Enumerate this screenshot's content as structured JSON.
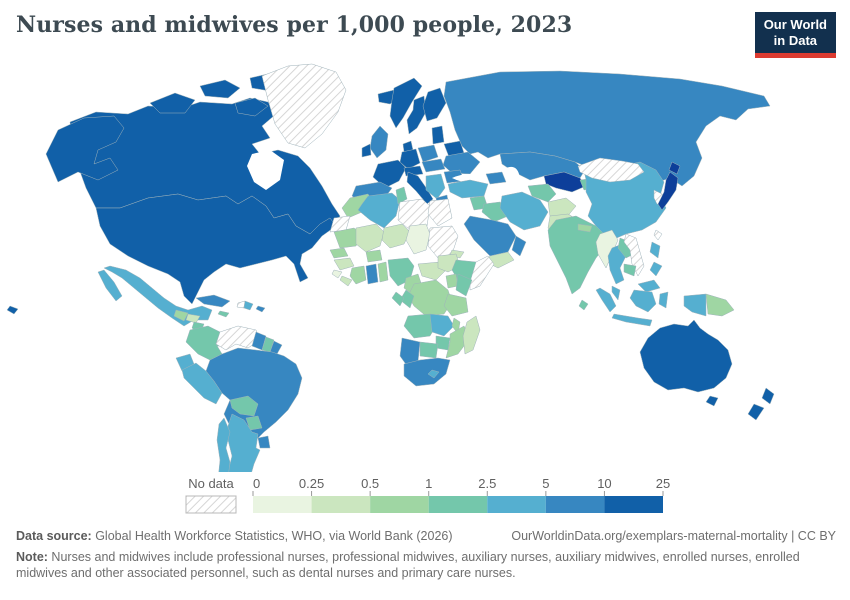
{
  "header": {
    "title": "Nurses and midwives per 1,000 people, 2023",
    "logo_line1": "Our World",
    "logo_line2": "in Data"
  },
  "colors": {
    "logo_navy": "#12304e",
    "logo_red": "#dc3b31",
    "title_color": "#3d4a52",
    "border_color": "#9fb3bb",
    "hatch_line": "#d6d6d6"
  },
  "legend": {
    "no_data_label": "No data",
    "tick_labels": [
      "0",
      "0.25",
      "0.5",
      "1",
      "2.5",
      "5",
      "10",
      "25"
    ]
  },
  "footer": {
    "source_label": "Data source:",
    "source_text": " Global Health Workforce Statistics, WHO, via World Bank (2026)",
    "link_text": "OurWorldinData.org/exemplars-maternal-mortality | CC BY",
    "note_label": "Note:",
    "note_text": " Nurses and midwives include professional nurses, professional midwives, auxiliary nurses, auxiliary midwives, enrolled nurses, enrolled midwives and other associated personnel, such as dental nurses and primary care nurses."
  },
  "chart_data": {
    "type": "choropleth",
    "title": "Nurses and midwives per 1,000 people, 2023",
    "year": "2023",
    "unit_label": "Nurses and midwives per 1,000 people",
    "no_data_label": "No data",
    "bin_edges": [
      0,
      0.25,
      0.5,
      1,
      2.5,
      5,
      10,
      25
    ],
    "legend_bins": [
      "0-0.25",
      "0.25-0.5",
      "0.5-1",
      "1-2.5",
      "2.5-5",
      "5-10",
      "10-25"
    ],
    "bin_colors": {
      "0-0.25": "#e9f4e1",
      "0.25-0.5": "#cbe6bf",
      "0.5-1": "#9fd6a3",
      "1-2.5": "#74c7ab",
      "2.5-5": "#55afd0",
      "5-10": "#3787c1",
      "10-25": "#1160a8",
      "25+": "#0d3f9a"
    },
    "country_bins": {
      "canada": "10-25",
      "united-states": "10-25",
      "greenland": "no-data",
      "iceland": "10-25",
      "mexico": "2.5-5",
      "guatemala": "0.5-1",
      "honduras": "0.25-0.5",
      "nicaragua": "1-2.5",
      "costa-rica": "2.5-5",
      "panama": "1-2.5",
      "cuba": "5-10",
      "haiti": "no-data",
      "dominican-republic": "2.5-5",
      "jamaica": "1-2.5",
      "puerto-rico": "5-10",
      "colombia": "1-2.5",
      "venezuela": "no-data",
      "guyana": "5-10",
      "suriname": "1-2.5",
      "french-guiana": "5-10",
      "ecuador": "2.5-5",
      "peru": "2.5-5",
      "brazil": "5-10",
      "bolivia": "1-2.5",
      "paraguay": "1-2.5",
      "uruguay": "5-10",
      "argentina": "2.5-5",
      "chile": "2.5-5",
      "united-kingdom": "5-10",
      "ireland": "10-25",
      "norway": "10-25",
      "sweden": "10-25",
      "finland": "10-25",
      "denmark": "10-25",
      "baltics": "10-25",
      "belarus": "10-25",
      "poland": "5-10",
      "germany": "10-25",
      "france": "10-25",
      "spain-portugal": "5-10",
      "italy": "10-25",
      "switzerland-austria": "10-25",
      "czechia-hungary": "5-10",
      "ukraine": "5-10",
      "romania": "5-10",
      "balkans": "2.5-5",
      "greece": "5-10",
      "russia": "5-10",
      "kazakhstan": "5-10",
      "uzbekistan": "25+",
      "turkmenistan": "1-2.5",
      "kyrgyzstan-tajikistan": "1-2.5",
      "caucasus": "5-10",
      "turkey": "2.5-5",
      "syria": "1-2.5",
      "iraq": "1-2.5",
      "iran": "2.5-5",
      "saudi-arabia": "5-10",
      "yemen": "0.25-0.5",
      "oman": "5-10",
      "afghanistan": "0.25-0.5",
      "pakistan": "0.25-0.5",
      "india": "1-2.5",
      "nepal": "0.5-1",
      "bangladesh": "0.5-1",
      "sri-lanka": "1-2.5",
      "china": "2.5-5",
      "mongolia": "no-data",
      "korea": "no-data",
      "japan": "25+",
      "taiwan": "no-data",
      "myanmar": "0-0.25",
      "thailand": "2.5-5",
      "laos": "1-2.5",
      "vietnam": "no-data",
      "cambodia": "1-2.5",
      "malaysia": "2.5-5",
      "philippines": "2.5-5",
      "indonesia": "2.5-5",
      "papua-new-guinea": "0.5-1",
      "australia": "10-25",
      "new-zealand": "10-25",
      "hawaii": "10-25",
      "morocco": "0.5-1",
      "western-sahara": "no-data",
      "algeria": "2.5-5",
      "tunisia": "1-2.5",
      "libya": "no-data",
      "egypt": "no-data",
      "mauritania": "0.5-1",
      "mali": "0.25-0.5",
      "niger": "0.25-0.5",
      "chad": "0-0.25",
      "sudan": "no-data",
      "eritrea": "0.25-0.5",
      "senegal": "0.5-1",
      "guinea": "0.25-0.5",
      "sierra-leone": "0-0.25",
      "liberia": "0.25-0.5",
      "ivory-coast": "0.5-1",
      "burkina-faso": "0.5-1",
      "ghana": "5-10",
      "togo-benin": "0.5-1",
      "nigeria": "1-2.5",
      "cameroon": "0.5-1",
      "central-african-republic": "0.25-0.5",
      "south-sudan": "0.25-0.5",
      "ethiopia": "1-2.5",
      "somalia": "no-data",
      "uganda": "0.5-1",
      "kenya": "1-2.5",
      "dr-congo": "0.5-1",
      "congo": "1-2.5",
      "gabon": "1-2.5",
      "tanzania": "0.5-1",
      "angola": "1-2.5",
      "zambia": "2.5-5",
      "malawi": "0.5-1",
      "mozambique": "0.5-1",
      "zimbabwe": "1-2.5",
      "botswana": "1-2.5",
      "namibia": "5-10",
      "south-africa": "5-10",
      "lesotho": "2.5-5",
      "madagascar": "0.25-0.5"
    }
  }
}
